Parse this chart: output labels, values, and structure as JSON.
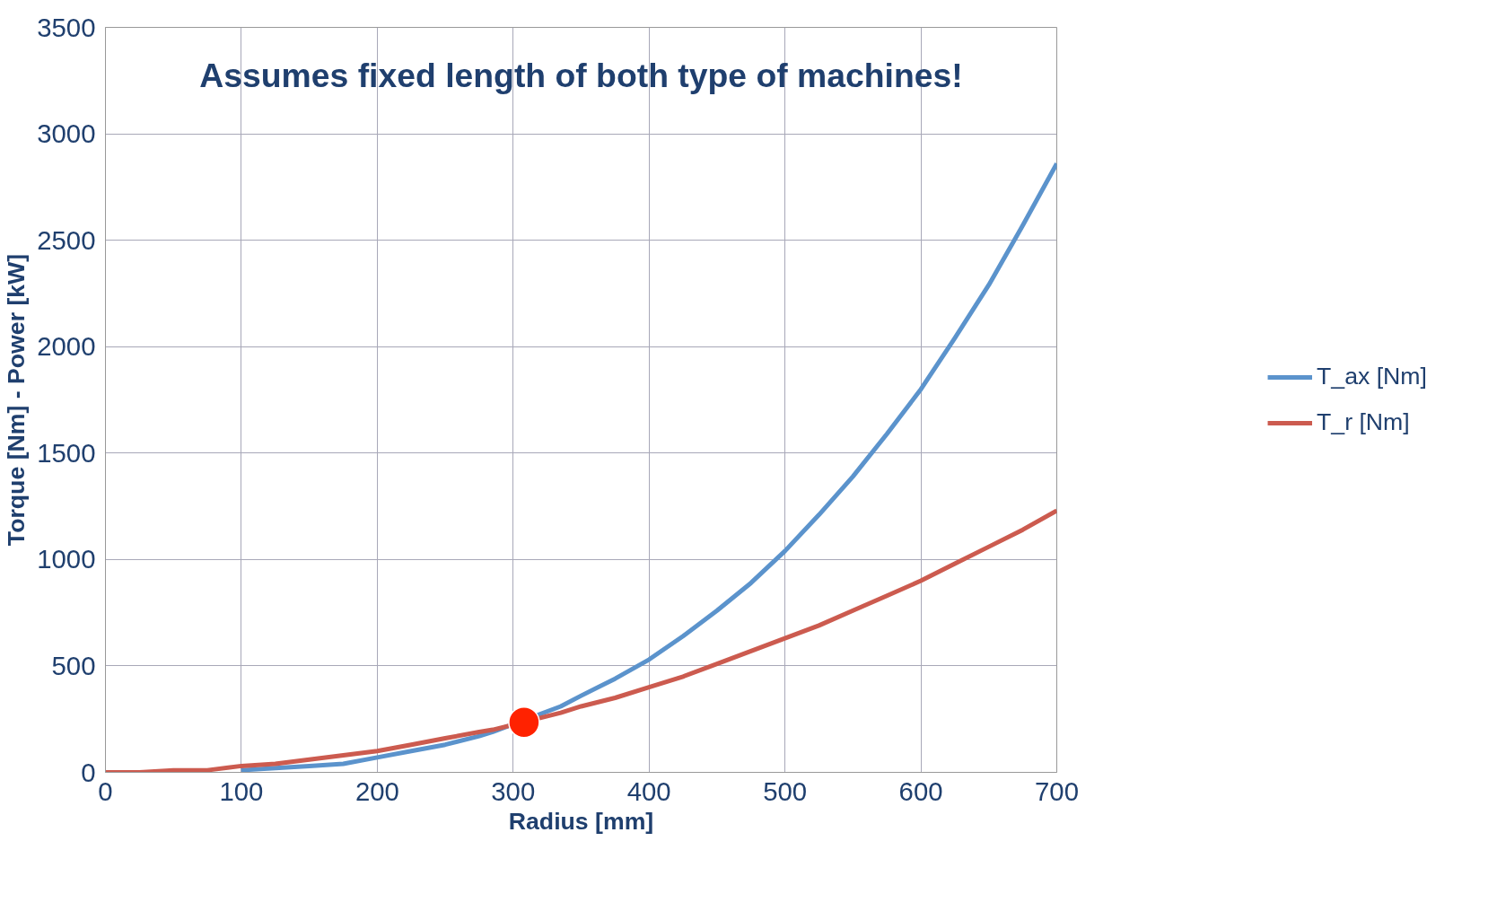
{
  "chart_data": {
    "type": "line",
    "xlabel": "Radius [mm]",
    "ylabel": "Torque [Nm] - Power [kW]",
    "annotations": [
      "Assumes fixed length of both type of machines!"
    ],
    "x": [
      0,
      25,
      50,
      75,
      100,
      125,
      150,
      175,
      200,
      225,
      250,
      275,
      285,
      335,
      350,
      375,
      400,
      425,
      450,
      475,
      500,
      525,
      550,
      575,
      600,
      625,
      650,
      675,
      700
    ],
    "series": [
      {
        "name": "T_ax [Nm]",
        "color": "#5b93cc",
        "values": [
          null,
          null,
          null,
          null,
          10,
          20,
          30,
          40,
          70,
          100,
          130,
          170,
          190,
          310,
          360,
          440,
          530,
          640,
          760,
          890,
          1040,
          1210,
          1390,
          1590,
          1800,
          2040,
          2290,
          2570,
          2860
        ]
      },
      {
        "name": "T_r [Nm]",
        "color": "#cc5b4f",
        "values": [
          0,
          0,
          10,
          10,
          30,
          40,
          60,
          80,
          100,
          130,
          160,
          190,
          200,
          280,
          310,
          350,
          400,
          450,
          510,
          570,
          630,
          690,
          760,
          830,
          900,
          980,
          1060,
          1140,
          1230
        ]
      },
      {
        "type": "scatter",
        "marker": "circle",
        "color": "#ff2200",
        "x": [
          308
        ],
        "values": [
          235
        ]
      }
    ],
    "xlim": [
      0,
      700
    ],
    "xticks": [
      0,
      100,
      200,
      300,
      400,
      500,
      600,
      700
    ],
    "ylim": [
      0,
      3500
    ],
    "yticks": [
      0,
      500,
      1000,
      1500,
      2000,
      2500,
      3000,
      3500
    ],
    "grid": true,
    "legend": "right"
  }
}
